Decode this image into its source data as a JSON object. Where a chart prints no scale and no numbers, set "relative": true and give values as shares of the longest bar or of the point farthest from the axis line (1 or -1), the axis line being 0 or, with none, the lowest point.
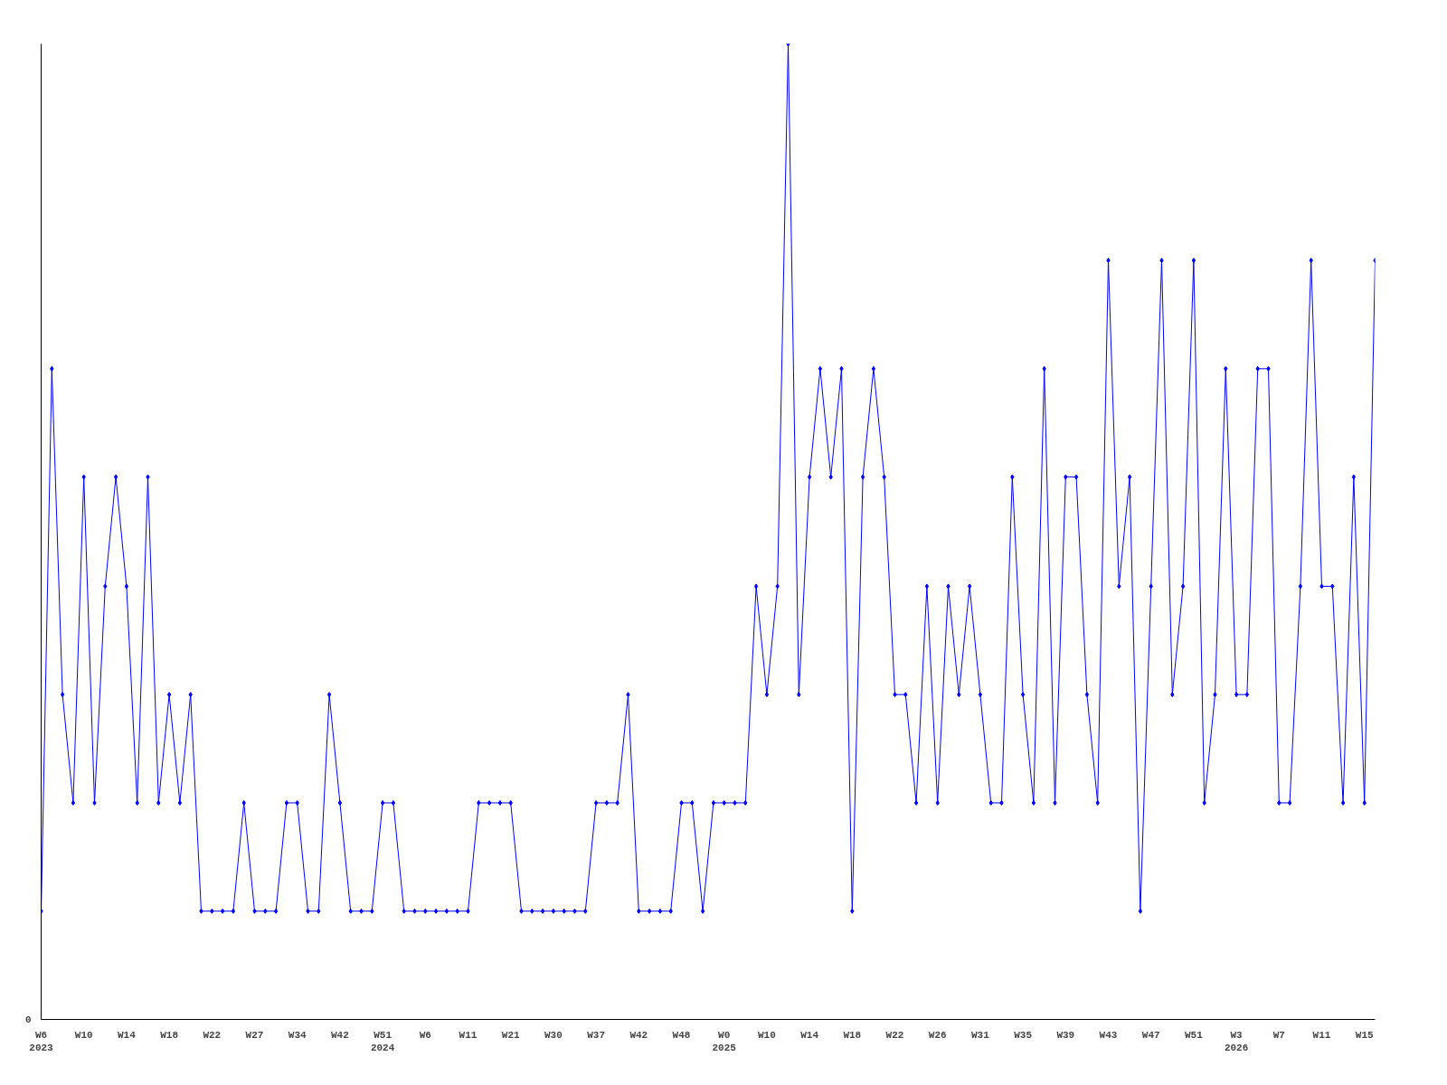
{
  "chart_data": {
    "type": "line",
    "relative": true,
    "marker": "diamond",
    "line_style": "solid",
    "grid": false,
    "annotations": [
      "0"
    ],
    "categories": [
      "W6\n2023",
      null,
      null,
      null,
      "W10",
      null,
      null,
      null,
      "W14",
      null,
      null,
      null,
      "W18",
      null,
      null,
      null,
      "W22",
      null,
      null,
      null,
      "W27",
      null,
      null,
      null,
      "W34",
      null,
      null,
      null,
      "W42",
      null,
      null,
      null,
      "W51\n2024",
      null,
      null,
      null,
      "W6",
      null,
      null,
      null,
      "W11",
      null,
      null,
      null,
      "W21",
      null,
      null,
      null,
      "W30",
      null,
      null,
      null,
      "W37",
      null,
      null,
      null,
      "W42",
      null,
      null,
      null,
      "W48",
      null,
      null,
      null,
      "W0\n2025",
      null,
      null,
      null,
      "W10",
      null,
      null,
      null,
      "W14",
      null,
      null,
      null,
      "W18",
      null,
      null,
      null,
      "W22",
      null,
      null,
      null,
      "W26",
      null,
      null,
      null,
      "W31",
      null,
      null,
      null,
      "W35",
      null,
      null,
      null,
      "W39",
      null,
      null,
      null,
      "W43",
      null,
      null,
      null,
      "W47",
      null,
      null,
      null,
      "W51",
      null,
      null,
      null,
      "W3\n2026",
      null,
      null,
      null,
      "W7",
      null,
      null,
      null,
      "W11",
      null,
      null,
      null,
      "W15",
      null
    ],
    "series": [
      {
        "color": "#0000ff",
        "values": [
          0.111,
          0.667,
          0.333,
          0.222,
          0.556,
          0.222,
          0.444,
          0.556,
          0.444,
          0.222,
          0.556,
          0.222,
          0.333,
          0.222,
          0.333,
          0.111,
          0.111,
          0.111,
          0.111,
          0.222,
          0.111,
          0.111,
          0.111,
          0.222,
          0.222,
          0.111,
          0.111,
          0.333,
          0.222,
          0.111,
          0.111,
          0.111,
          0.222,
          0.222,
          0.111,
          0.111,
          0.111,
          0.111,
          0.111,
          0.111,
          0.111,
          0.222,
          0.222,
          0.222,
          0.222,
          0.111,
          0.111,
          0.111,
          0.111,
          0.111,
          0.111,
          0.111,
          0.222,
          0.222,
          0.222,
          0.333,
          0.111,
          0.111,
          0.111,
          0.111,
          0.222,
          0.222,
          0.111,
          0.222,
          0.222,
          0.222,
          0.222,
          0.444,
          0.333,
          0.444,
          1,
          0.333,
          0.556,
          0.667,
          0.556,
          0.667,
          0.111,
          0.556,
          0.667,
          0.556,
          0.333,
          0.333,
          0.222,
          0.444,
          0.222,
          0.444,
          0.333,
          0.444,
          0.333,
          0.222,
          0.222,
          0.556,
          0.333,
          0.222,
          0.667,
          0.222,
          0.556,
          0.556,
          0.333,
          0.222,
          0.778,
          0.444,
          0.556,
          0.111,
          0.444,
          0.778,
          0.333,
          0.444,
          0.778,
          0.222,
          0.333,
          0.667,
          0.333,
          0.333,
          0.667,
          0.667,
          0.222,
          0.222,
          0.444,
          0.778,
          0.444,
          0.444,
          0.222,
          0.556,
          0.222,
          0.778
        ]
      }
    ]
  }
}
